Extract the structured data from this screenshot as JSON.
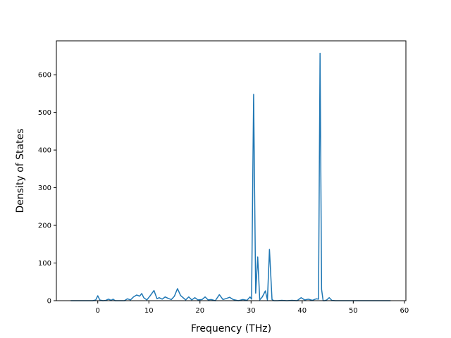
{
  "chart_data": {
    "type": "line",
    "title": "",
    "xlabel": "Frequency (THz)",
    "ylabel": "Density of States",
    "xlim": [
      -8.1,
      60.3
    ],
    "ylim": [
      0,
      690
    ],
    "xticks": [
      0,
      10,
      20,
      30,
      40,
      50,
      60
    ],
    "yticks": [
      0,
      100,
      200,
      300,
      400,
      500,
      600
    ],
    "grid": false,
    "legend": "none",
    "line_color": "#1f77b4",
    "series": [
      {
        "x": [
          -5.3,
          -1.0,
          -0.4,
          0.0,
          0.4,
          1.0,
          1.6,
          2.1,
          2.6,
          3.0,
          3.4,
          4.0,
          5.2,
          5.8,
          6.4,
          7.0,
          7.6,
          8.2,
          8.6,
          9.0,
          9.6,
          10.2,
          11.0,
          11.6,
          12.0,
          12.6,
          13.2,
          13.8,
          14.4,
          15.0,
          15.6,
          16.2,
          17.2,
          17.8,
          18.4,
          19.0,
          19.6,
          20.4,
          21.0,
          21.6,
          22.2,
          23.0,
          23.8,
          24.5,
          25.2,
          25.8,
          26.5,
          27.5,
          28.4,
          29.2,
          29.8,
          30.1,
          30.5,
          30.9,
          31.3,
          31.7,
          32.2,
          32.8,
          33.2,
          33.6,
          34.1,
          34.5,
          35.2,
          36.0,
          37.0,
          38.0,
          39.0,
          39.8,
          40.5,
          41.2,
          42.0,
          42.8,
          43.2,
          43.5,
          43.8,
          44.1,
          44.4,
          44.8,
          45.3,
          45.8,
          46.5,
          57.3
        ],
        "y": [
          0,
          0,
          2,
          13,
          2,
          0,
          1,
          4,
          1,
          4,
          0,
          0,
          0,
          5,
          2,
          10,
          15,
          12,
          19,
          8,
          2,
          12,
          27,
          5,
          8,
          4,
          10,
          6,
          3,
          12,
          32,
          14,
          2,
          10,
          2,
          8,
          2,
          3,
          10,
          2,
          3,
          0,
          16,
          3,
          6,
          9,
          3,
          0,
          3,
          1,
          10,
          4,
          548,
          20,
          116,
          2,
          10,
          26,
          2,
          136,
          3,
          0,
          0,
          1,
          0,
          1,
          0,
          8,
          2,
          4,
          1,
          5,
          4,
          657,
          30,
          0,
          0,
          2,
          8,
          1,
          0,
          0
        ]
      }
    ]
  }
}
